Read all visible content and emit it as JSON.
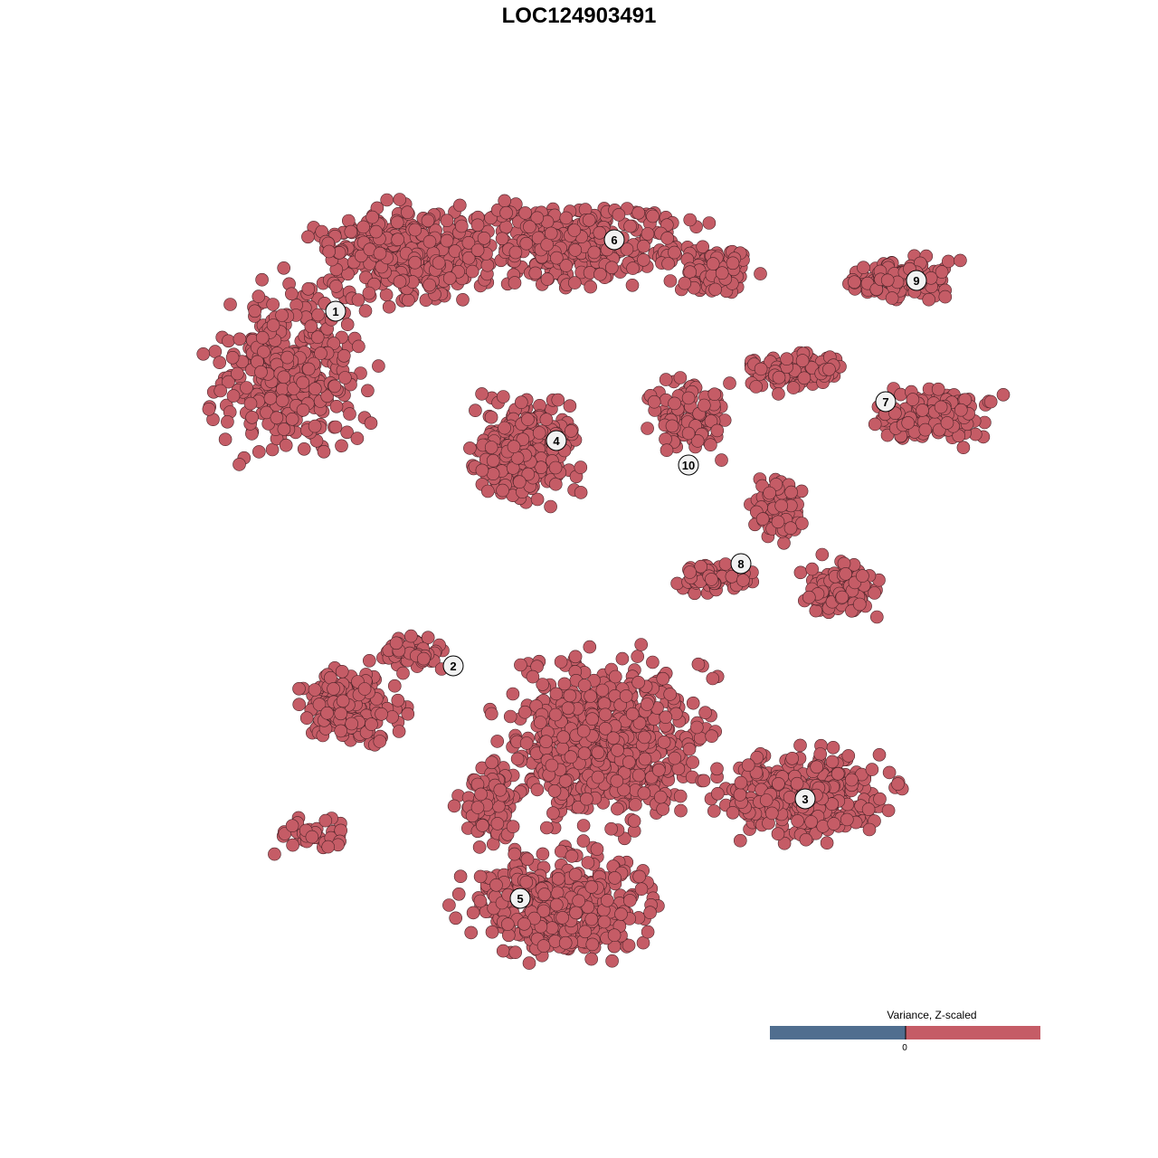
{
  "chart_data": {
    "type": "scatter",
    "title": "LOC124903491",
    "xlabel": "",
    "ylabel": "",
    "grid": false,
    "axes_visible": false,
    "cluster_labels": [
      "1",
      "2",
      "3",
      "4",
      "5",
      "6",
      "7",
      "8",
      "9",
      "10"
    ],
    "point_color": "#c55c66",
    "point_stroke": "#4a2328",
    "legend": {
      "title": "Variance, Z-scaled",
      "placement": "bottom-right",
      "tick_label": "0",
      "low_color": "#506e8f",
      "high_color": "#c55c66"
    }
  }
}
